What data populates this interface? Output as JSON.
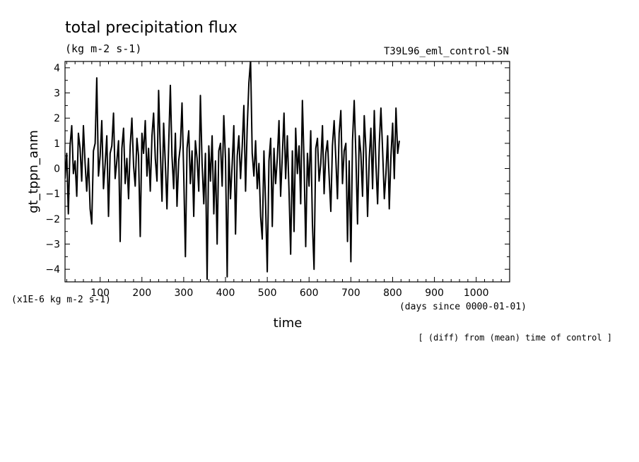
{
  "chart_data": {
    "type": "line",
    "title": "total precipitation flux",
    "subtitle": "(kg m-2 s-1)",
    "experiment": "T39L96_eml_control-5N",
    "ylabel": "gt_tppn_anm",
    "xlabel": "time",
    "x_units": "(days since 0000-01-01)",
    "y_units": "(x1E-6 kg m-2 s-1)",
    "footnote": "[ (diff) from (mean) time of control ]",
    "xlim": [
      16,
      1080
    ],
    "ylim": [
      -4.5,
      4.25
    ],
    "x_ticks": [
      100,
      200,
      300,
      400,
      500,
      600,
      700,
      800,
      900,
      1000
    ],
    "y_ticks": [
      -4,
      -3,
      -2,
      -1,
      0,
      1,
      2,
      3,
      4
    ],
    "series": [
      {
        "name": "gt_tppn_anm",
        "color": "#000000",
        "x_start": 16,
        "x_step": 4,
        "values": [
          -0.4,
          0.6,
          -1.8,
          0.9,
          1.7,
          -0.2,
          0.3,
          -1.1,
          1.4,
          0.8,
          -0.5,
          1.7,
          0.2,
          -0.9,
          0.4,
          -1.6,
          -2.2,
          0.7,
          1.0,
          3.6,
          -0.3,
          0.5,
          1.9,
          -0.8,
          0.2,
          1.3,
          -1.9,
          0.6,
          0.9,
          2.2,
          -0.4,
          0.3,
          1.1,
          -2.9,
          0.8,
          1.6,
          -0.6,
          0.4,
          -1.2,
          0.9,
          2.0,
          0.1,
          -0.7,
          1.2,
          0.5,
          -2.7,
          1.4,
          0.6,
          1.9,
          -0.3,
          0.8,
          -0.9,
          1.3,
          2.2,
          0.4,
          -0.5,
          3.1,
          0.7,
          -1.3,
          1.8,
          0.2,
          -1.6,
          0.9,
          3.3,
          0.5,
          -0.8,
          1.4,
          -1.5,
          0.3,
          0.9,
          2.6,
          -0.2,
          -3.5,
          0.8,
          1.5,
          -0.6,
          0.7,
          -1.9,
          1.1,
          0.4,
          -0.9,
          2.9,
          0.2,
          -1.4,
          0.6,
          -4.4,
          0.9,
          -0.5,
          1.3,
          -1.8,
          0.3,
          -3.0,
          0.7,
          1.0,
          -0.7,
          2.1,
          0.4,
          -4.3,
          0.8,
          -1.2,
          0.2,
          1.7,
          -2.6,
          0.5,
          1.3,
          -0.4,
          0.9,
          2.5,
          -0.9,
          1.6,
          3.4,
          4.3,
          0.6,
          -0.3,
          1.1,
          -0.8,
          0.2,
          -1.9,
          -2.8,
          0.7,
          -1.5,
          -4.1,
          0.3,
          1.2,
          -2.3,
          0.8,
          -0.6,
          0.4,
          1.9,
          -1.1,
          0.5,
          2.2,
          -0.4,
          1.3,
          -0.9,
          -3.4,
          0.7,
          -2.5,
          1.6,
          -0.2,
          0.9,
          -1.4,
          2.7,
          0.3,
          -3.1,
          0.6,
          -0.7,
          1.5,
          -2.2,
          -4.0,
          0.8,
          1.2,
          -0.5,
          0.2,
          1.7,
          -1.0,
          0.6,
          1.1,
          -0.3,
          -1.7,
          0.9,
          1.9,
          0.4,
          -1.2,
          1.4,
          2.3,
          -0.6,
          0.7,
          1.0,
          -2.9,
          0.3,
          -3.7,
          1.1,
          2.7,
          0.5,
          -2.2,
          1.3,
          0.6,
          -1.1,
          2.1,
          0.8,
          -1.9,
          0.4,
          1.6,
          -0.8,
          2.3,
          0.2,
          -1.4,
          1.0,
          2.4,
          0.7,
          -1.2,
          -0.2,
          1.3,
          -1.6,
          0.5,
          1.8,
          -0.4,
          2.4,
          0.6,
          1.1
        ]
      }
    ]
  }
}
